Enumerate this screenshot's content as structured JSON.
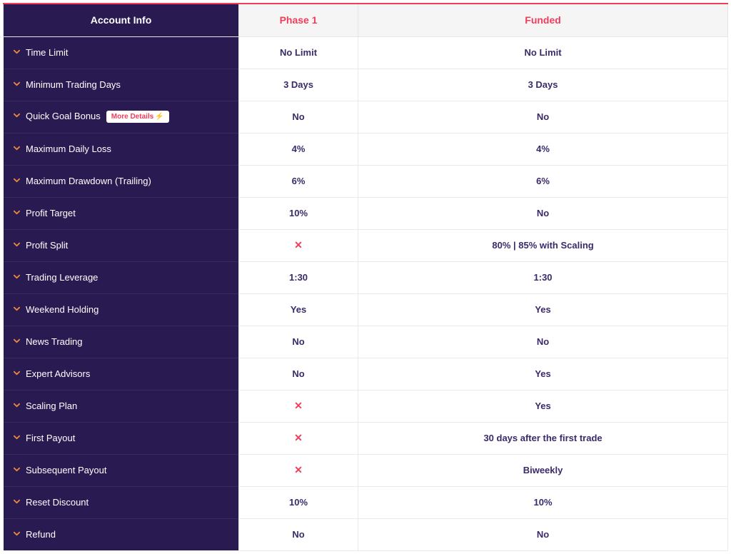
{
  "header": {
    "col1": "Account Info",
    "col2": "Phase 1",
    "col3": "Funded"
  },
  "badge": {
    "text": "More Details",
    "bolt": "⚡"
  },
  "x_symbol": "✕",
  "colors": {
    "dark_purple": "#2a1a52",
    "pink_red": "#ef3d5a",
    "orange_chevron": "#ef8a3d",
    "value_text": "#3a2a6a",
    "header_bg": "#f5f5f5",
    "border": "#e5e5e5"
  },
  "rows": [
    {
      "label": "Time Limit",
      "badge": false,
      "phase1": "No Limit",
      "funded": "No Limit",
      "p1_x": false,
      "f_x": false
    },
    {
      "label": "Minimum Trading Days",
      "badge": false,
      "phase1": "3 Days",
      "funded": "3 Days",
      "p1_x": false,
      "f_x": false
    },
    {
      "label": "Quick Goal Bonus",
      "badge": true,
      "phase1": "No",
      "funded": "No",
      "p1_x": false,
      "f_x": false
    },
    {
      "label": "Maximum Daily Loss",
      "badge": false,
      "phase1": "4%",
      "funded": "4%",
      "p1_x": false,
      "f_x": false
    },
    {
      "label": "Maximum Drawdown (Trailing)",
      "badge": false,
      "phase1": "6%",
      "funded": "6%",
      "p1_x": false,
      "f_x": false
    },
    {
      "label": "Profit Target",
      "badge": false,
      "phase1": "10%",
      "funded": "No",
      "p1_x": false,
      "f_x": false
    },
    {
      "label": "Profit Split",
      "badge": false,
      "phase1": "",
      "funded": "80% | 85% with Scaling",
      "p1_x": true,
      "f_x": false
    },
    {
      "label": "Trading Leverage",
      "badge": false,
      "phase1": "1:30",
      "funded": "1:30",
      "p1_x": false,
      "f_x": false
    },
    {
      "label": "Weekend Holding",
      "badge": false,
      "phase1": "Yes",
      "funded": "Yes",
      "p1_x": false,
      "f_x": false
    },
    {
      "label": "News Trading",
      "badge": false,
      "phase1": "No",
      "funded": "No",
      "p1_x": false,
      "f_x": false
    },
    {
      "label": "Expert Advisors",
      "badge": false,
      "phase1": "No",
      "funded": "Yes",
      "p1_x": false,
      "f_x": false
    },
    {
      "label": "Scaling Plan",
      "badge": false,
      "phase1": "",
      "funded": "Yes",
      "p1_x": true,
      "f_x": false
    },
    {
      "label": "First Payout",
      "badge": false,
      "phase1": "",
      "funded": "30 days after the first trade",
      "p1_x": true,
      "f_x": false
    },
    {
      "label": "Subsequent Payout",
      "badge": false,
      "phase1": "",
      "funded": "Biweekly",
      "p1_x": true,
      "f_x": false
    },
    {
      "label": "Reset Discount",
      "badge": false,
      "phase1": "10%",
      "funded": "10%",
      "p1_x": false,
      "f_x": false
    },
    {
      "label": "Refund",
      "badge": false,
      "phase1": "No",
      "funded": "No",
      "p1_x": false,
      "f_x": false
    }
  ]
}
